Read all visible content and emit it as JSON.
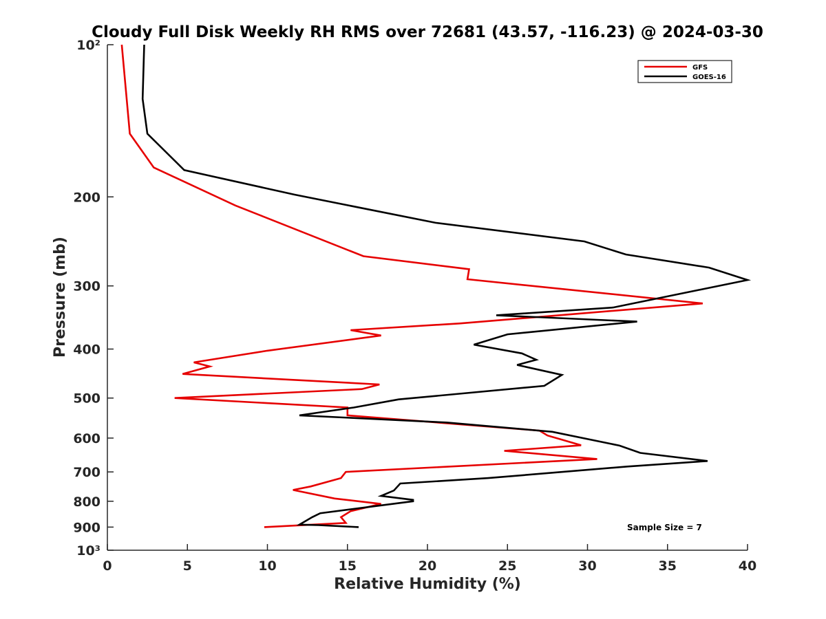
{
  "chart_data": {
    "type": "line",
    "title": "Cloudy Full Disk Weekly RH RMS over 72681 (43.57, -116.23) @ 2024-03-30",
    "xlabel": "Relative Humidity (%)",
    "ylabel": "Pressure (mb)",
    "xlim": [
      0,
      40
    ],
    "ylim": [
      100,
      1000
    ],
    "yscale": "log",
    "y_reversed": true,
    "grid": false,
    "legend_placement": "top-right",
    "x_ticks": [
      0,
      5,
      10,
      15,
      20,
      25,
      30,
      35,
      40
    ],
    "x_tick_labels": [
      "0",
      "5",
      "10",
      "15",
      "20",
      "25",
      "30",
      "35",
      "40"
    ],
    "y_ticks": [
      100,
      200,
      300,
      400,
      500,
      600,
      700,
      800,
      900,
      1000
    ],
    "y_tick_labels": [
      "10²",
      "200",
      "300",
      "400",
      "500",
      "600",
      "700",
      "800",
      "900",
      "10³"
    ],
    "annotation": "Sample Size = 7",
    "series": [
      {
        "name": "GFS",
        "color": "#e60000",
        "points": [
          [
            0.9,
            100
          ],
          [
            1.4,
            150
          ],
          [
            2.9,
            175
          ],
          [
            8.0,
            208
          ],
          [
            16.0,
            262
          ],
          [
            22.6,
            278
          ],
          [
            22.5,
            291
          ],
          [
            37.2,
            325
          ],
          [
            22.0,
            356
          ],
          [
            15.2,
            367
          ],
          [
            17.1,
            376
          ],
          [
            10.0,
            403
          ],
          [
            5.4,
            425
          ],
          [
            6.4,
            433
          ],
          [
            4.7,
            448
          ],
          [
            17.0,
            470
          ],
          [
            15.9,
            480
          ],
          [
            4.2,
            500
          ],
          [
            15.0,
            522
          ],
          [
            15.0,
            541
          ],
          [
            27.0,
            580
          ],
          [
            27.5,
            593
          ],
          [
            29.6,
            620
          ],
          [
            24.8,
            636
          ],
          [
            30.6,
            660
          ],
          [
            14.9,
            700
          ],
          [
            14.6,
            720
          ],
          [
            12.7,
            748
          ],
          [
            11.6,
            760
          ],
          [
            14.2,
            790
          ],
          [
            17.1,
            810
          ],
          [
            15.2,
            837
          ],
          [
            14.6,
            860
          ],
          [
            14.9,
            883
          ],
          [
            9.8,
            900
          ]
        ]
      },
      {
        "name": "GOES-16",
        "color": "#000000",
        "points": [
          [
            2.3,
            100
          ],
          [
            2.2,
            128
          ],
          [
            2.5,
            150
          ],
          [
            4.8,
            177
          ],
          [
            11.7,
            198
          ],
          [
            20.5,
            225
          ],
          [
            29.8,
            245
          ],
          [
            32.4,
            260
          ],
          [
            37.6,
            276
          ],
          [
            40.0,
            292
          ],
          [
            31.6,
            331
          ],
          [
            24.3,
            343
          ],
          [
            33.1,
            353
          ],
          [
            25.0,
            374
          ],
          [
            22.9,
            392
          ],
          [
            25.9,
            408
          ],
          [
            26.8,
            420
          ],
          [
            25.6,
            430
          ],
          [
            28.4,
            450
          ],
          [
            27.3,
            473
          ],
          [
            18.2,
            503
          ],
          [
            15.4,
            522
          ],
          [
            12.0,
            541
          ],
          [
            21.2,
            559
          ],
          [
            27.8,
            583
          ],
          [
            32.0,
            621
          ],
          [
            33.3,
            642
          ],
          [
            37.5,
            666
          ],
          [
            32.5,
            683
          ],
          [
            23.8,
            720
          ],
          [
            18.3,
            738
          ],
          [
            17.9,
            762
          ],
          [
            17.1,
            781
          ],
          [
            19.1,
            795
          ],
          [
            19.1,
            800
          ],
          [
            13.3,
            845
          ],
          [
            12.8,
            860
          ],
          [
            12.0,
            890
          ],
          [
            13.2,
            892
          ],
          [
            15.7,
            900
          ]
        ]
      }
    ]
  }
}
